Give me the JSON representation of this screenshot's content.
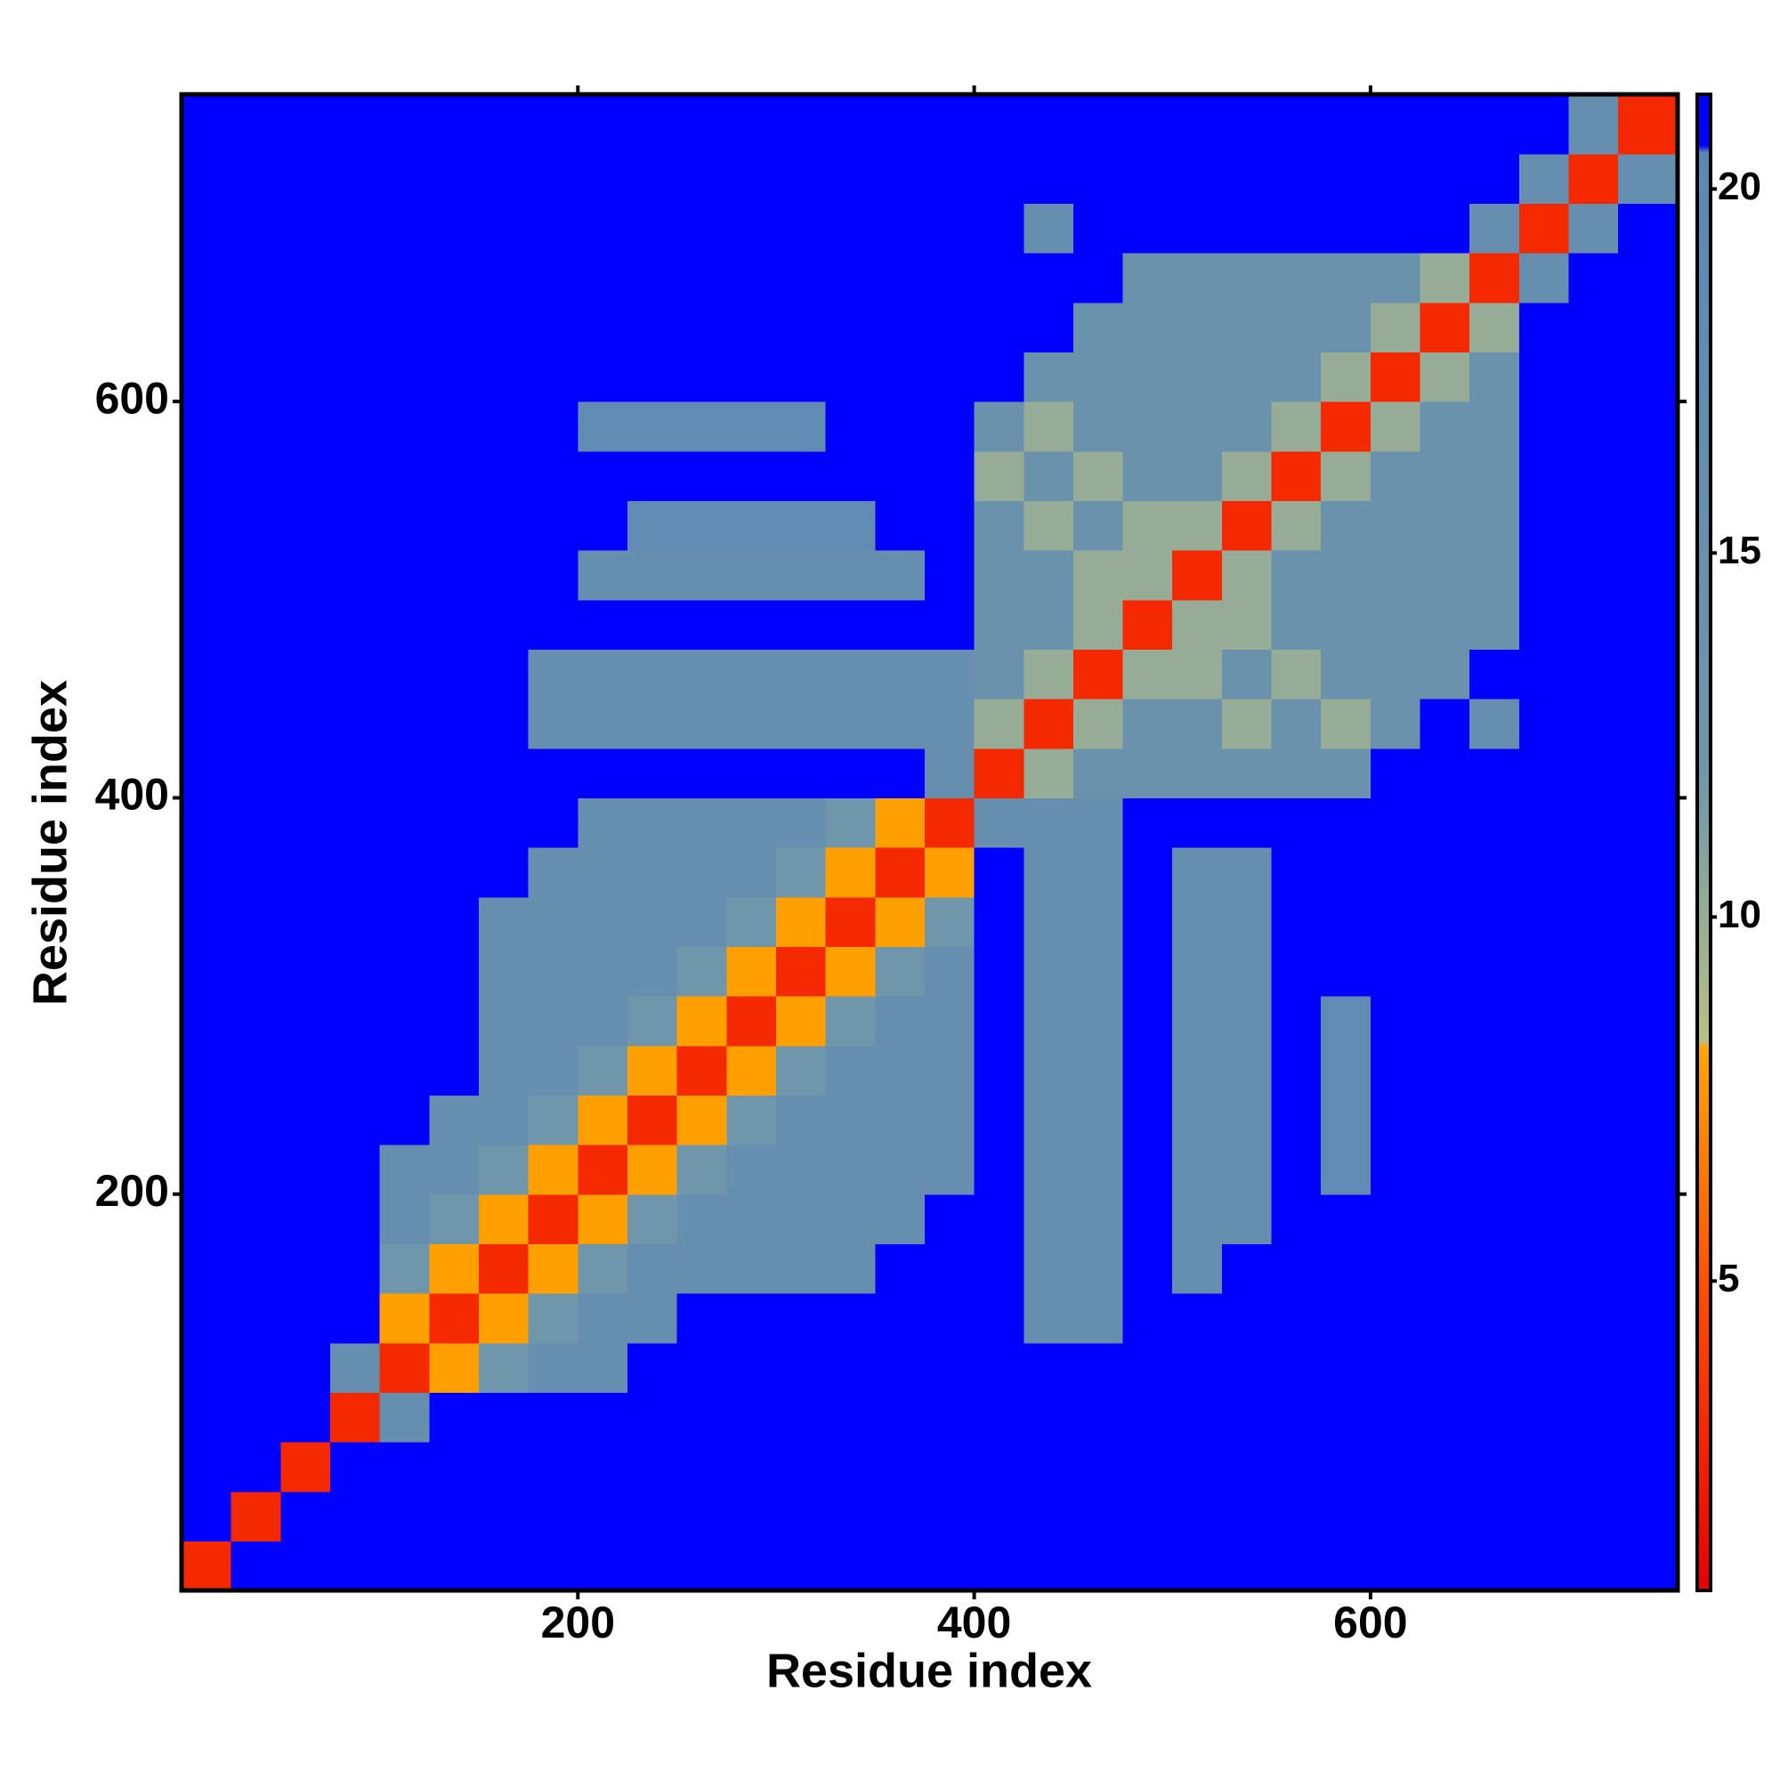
{
  "chart_data": {
    "type": "heatmap",
    "xlabel": "Residue index",
    "ylabel": "Residue index",
    "xlim": [
      0,
      755
    ],
    "ylim": [
      0,
      755
    ],
    "xticks": [
      200,
      400,
      600
    ],
    "yticks": [
      200,
      400,
      600
    ],
    "xbins": [
      0,
      25,
      50,
      75,
      100,
      125,
      150,
      175,
      200,
      225,
      250,
      275,
      300,
      325,
      350,
      375,
      400,
      425,
      450,
      475,
      500,
      525,
      550,
      575,
      600,
      625,
      650,
      675,
      700,
      725,
      755
    ],
    "ybins": [
      0,
      25,
      50,
      75,
      100,
      125,
      150,
      175,
      200,
      225,
      250,
      275,
      300,
      325,
      350,
      375,
      400,
      425,
      450,
      475,
      500,
      525,
      550,
      575,
      600,
      625,
      650,
      675,
      700,
      725,
      755
    ],
    "zlim": [
      0.75,
      21.3
    ],
    "zticks": [
      5,
      10,
      15,
      20
    ],
    "colorscale": [
      [
        0.75,
        "#e60000"
      ],
      [
        4.5,
        "#ff4500"
      ],
      [
        8.2,
        "#ffa500"
      ],
      [
        8.3,
        "#b9bf85"
      ],
      [
        12,
        "#6f96aa"
      ],
      [
        20.5,
        "#5b87b5"
      ],
      [
        20.6,
        "#0000ff"
      ],
      [
        21.3,
        "#0000ff"
      ]
    ],
    "z": [
      [
        3,
        21,
        21,
        21,
        21,
        21,
        21,
        21,
        21,
        21,
        21,
        21,
        21,
        21,
        21,
        21,
        21,
        21,
        21,
        21,
        21,
        21,
        21,
        21,
        21,
        21,
        21,
        21,
        21,
        21
      ],
      [
        21,
        3,
        21,
        21,
        21,
        21,
        21,
        21,
        21,
        21,
        21,
        21,
        21,
        21,
        21,
        21,
        21,
        21,
        21,
        21,
        21,
        21,
        21,
        21,
        21,
        21,
        21,
        21,
        21,
        21
      ],
      [
        21,
        21,
        3,
        21,
        21,
        21,
        21,
        21,
        21,
        21,
        21,
        21,
        21,
        21,
        21,
        21,
        21,
        21,
        21,
        21,
        21,
        21,
        21,
        21,
        21,
        21,
        21,
        21,
        21,
        21
      ],
      [
        21,
        21,
        21,
        3,
        16,
        21,
        21,
        21,
        21,
        21,
        21,
        21,
        21,
        21,
        21,
        21,
        21,
        21,
        21,
        21,
        21,
        21,
        21,
        21,
        21,
        21,
        21,
        21,
        21,
        21
      ],
      [
        21,
        21,
        21,
        16,
        3,
        8,
        12,
        16,
        16,
        21,
        21,
        21,
        21,
        21,
        21,
        21,
        21,
        21,
        21,
        21,
        21,
        21,
        21,
        21,
        21,
        21,
        21,
        21,
        21,
        21
      ],
      [
        21,
        21,
        21,
        21,
        8,
        3,
        8,
        12,
        16,
        16,
        21,
        21,
        21,
        21,
        21,
        21,
        21,
        16,
        16,
        21,
        21,
        21,
        21,
        21,
        21,
        21,
        21,
        21,
        21,
        21
      ],
      [
        21,
        21,
        21,
        21,
        12,
        8,
        3,
        8,
        12,
        16,
        16,
        16,
        16,
        16,
        21,
        21,
        21,
        16,
        16,
        21,
        16,
        21,
        21,
        21,
        21,
        21,
        21,
        21,
        21,
        21
      ],
      [
        21,
        21,
        21,
        21,
        16,
        12,
        8,
        3,
        8,
        12,
        16,
        16,
        16,
        16,
        16,
        21,
        21,
        16,
        16,
        21,
        16,
        16,
        21,
        21,
        21,
        21,
        21,
        21,
        21,
        21
      ],
      [
        21,
        21,
        21,
        21,
        16,
        16,
        12,
        8,
        3,
        8,
        12,
        16,
        16,
        16,
        16,
        16,
        21,
        16,
        16,
        21,
        16,
        16,
        21,
        18,
        21,
        21,
        21,
        21,
        21,
        21
      ],
      [
        21,
        21,
        21,
        21,
        21,
        16,
        16,
        12,
        8,
        3,
        8,
        12,
        16,
        16,
        16,
        16,
        21,
        16,
        16,
        21,
        16,
        16,
        21,
        18,
        21,
        21,
        21,
        21,
        21,
        21
      ],
      [
        21,
        21,
        21,
        21,
        21,
        21,
        16,
        16,
        12,
        8,
        3,
        8,
        12,
        16,
        16,
        16,
        21,
        16,
        16,
        21,
        16,
        16,
        21,
        18,
        21,
        21,
        21,
        21,
        21,
        21
      ],
      [
        21,
        21,
        21,
        21,
        21,
        21,
        16,
        16,
        16,
        12,
        8,
        3,
        8,
        12,
        16,
        16,
        21,
        16,
        16,
        21,
        16,
        16,
        21,
        18,
        21,
        21,
        21,
        21,
        21,
        21
      ],
      [
        21,
        21,
        21,
        21,
        21,
        21,
        16,
        16,
        16,
        16,
        12,
        8,
        3,
        8,
        12,
        16,
        21,
        16,
        16,
        21,
        16,
        16,
        21,
        21,
        21,
        21,
        21,
        21,
        21,
        21
      ],
      [
        21,
        21,
        21,
        21,
        21,
        21,
        16,
        16,
        16,
        16,
        16,
        12,
        8,
        3,
        8,
        12,
        21,
        16,
        16,
        21,
        16,
        16,
        21,
        21,
        21,
        21,
        21,
        21,
        21,
        21
      ],
      [
        21,
        21,
        21,
        21,
        21,
        21,
        21,
        16,
        16,
        16,
        16,
        16,
        12,
        8,
        3,
        8,
        21,
        16,
        16,
        21,
        16,
        16,
        21,
        21,
        21,
        21,
        21,
        21,
        21,
        21
      ],
      [
        21,
        21,
        21,
        21,
        21,
        21,
        21,
        21,
        16,
        16,
        16,
        16,
        16,
        12,
        8,
        3,
        16,
        16,
        16,
        21,
        21,
        21,
        21,
        21,
        21,
        21,
        21,
        21,
        21,
        21
      ],
      [
        21,
        21,
        21,
        21,
        21,
        21,
        21,
        21,
        21,
        21,
        21,
        21,
        21,
        21,
        21,
        16,
        3,
        10,
        14,
        14,
        14,
        14,
        14,
        14,
        21,
        21,
        21,
        21,
        21,
        21
      ],
      [
        21,
        21,
        21,
        21,
        21,
        21,
        21,
        16,
        16,
        16,
        16,
        16,
        16,
        16,
        16,
        16,
        10,
        3,
        10,
        14,
        14,
        10,
        14,
        10,
        14,
        21,
        16,
        21,
        21,
        21
      ],
      [
        21,
        21,
        21,
        21,
        21,
        21,
        21,
        16,
        16,
        16,
        16,
        16,
        16,
        16,
        16,
        16,
        14,
        10,
        3,
        10,
        10,
        14,
        10,
        14,
        14,
        14,
        21,
        21,
        21,
        21
      ],
      [
        21,
        21,
        21,
        21,
        21,
        21,
        21,
        21,
        21,
        21,
        21,
        21,
        21,
        21,
        21,
        21,
        14,
        14,
        10,
        3,
        10,
        10,
        14,
        14,
        14,
        14,
        14,
        21,
        21,
        21
      ],
      [
        21,
        21,
        21,
        21,
        21,
        21,
        21,
        21,
        16,
        16,
        16,
        16,
        16,
        16,
        16,
        21,
        14,
        14,
        10,
        10,
        3,
        10,
        14,
        14,
        14,
        14,
        14,
        21,
        21,
        21
      ],
      [
        21,
        21,
        21,
        21,
        21,
        21,
        21,
        21,
        21,
        18,
        18,
        18,
        18,
        18,
        21,
        21,
        14,
        10,
        14,
        10,
        10,
        3,
        10,
        14,
        14,
        14,
        14,
        21,
        21,
        21
      ],
      [
        21,
        21,
        21,
        21,
        21,
        21,
        21,
        21,
        21,
        21,
        21,
        21,
        21,
        21,
        21,
        21,
        10,
        14,
        10,
        14,
        14,
        10,
        3,
        10,
        14,
        14,
        14,
        21,
        21,
        21
      ],
      [
        21,
        21,
        21,
        21,
        21,
        21,
        21,
        21,
        18,
        18,
        18,
        18,
        18,
        21,
        21,
        21,
        14,
        10,
        14,
        14,
        14,
        14,
        10,
        3,
        10,
        14,
        14,
        21,
        21,
        21
      ],
      [
        21,
        21,
        21,
        21,
        21,
        21,
        21,
        21,
        21,
        21,
        21,
        21,
        21,
        21,
        21,
        21,
        21,
        14,
        14,
        14,
        14,
        14,
        14,
        10,
        3,
        10,
        14,
        21,
        21,
        21
      ],
      [
        21,
        21,
        21,
        21,
        21,
        21,
        21,
        21,
        21,
        21,
        21,
        21,
        21,
        21,
        21,
        21,
        21,
        21,
        14,
        14,
        14,
        14,
        14,
        14,
        10,
        3,
        10,
        21,
        21,
        21
      ],
      [
        21,
        21,
        21,
        21,
        21,
        21,
        21,
        21,
        21,
        21,
        21,
        21,
        21,
        21,
        21,
        21,
        21,
        21,
        21,
        14,
        14,
        14,
        14,
        14,
        14,
        10,
        3,
        16,
        21,
        21
      ],
      [
        21,
        21,
        21,
        21,
        21,
        21,
        21,
        21,
        21,
        21,
        21,
        21,
        21,
        21,
        21,
        21,
        21,
        16,
        21,
        21,
        21,
        21,
        21,
        21,
        21,
        21,
        16,
        3,
        16,
        21
      ],
      [
        21,
        21,
        21,
        21,
        21,
        21,
        21,
        21,
        21,
        21,
        21,
        21,
        21,
        21,
        21,
        21,
        21,
        21,
        21,
        21,
        21,
        21,
        21,
        21,
        21,
        21,
        21,
        16,
        3,
        16
      ],
      [
        21,
        21,
        21,
        21,
        21,
        21,
        21,
        21,
        21,
        21,
        21,
        21,
        21,
        21,
        21,
        21,
        21,
        21,
        21,
        21,
        21,
        21,
        21,
        21,
        21,
        21,
        21,
        21,
        16,
        3
      ]
    ]
  }
}
